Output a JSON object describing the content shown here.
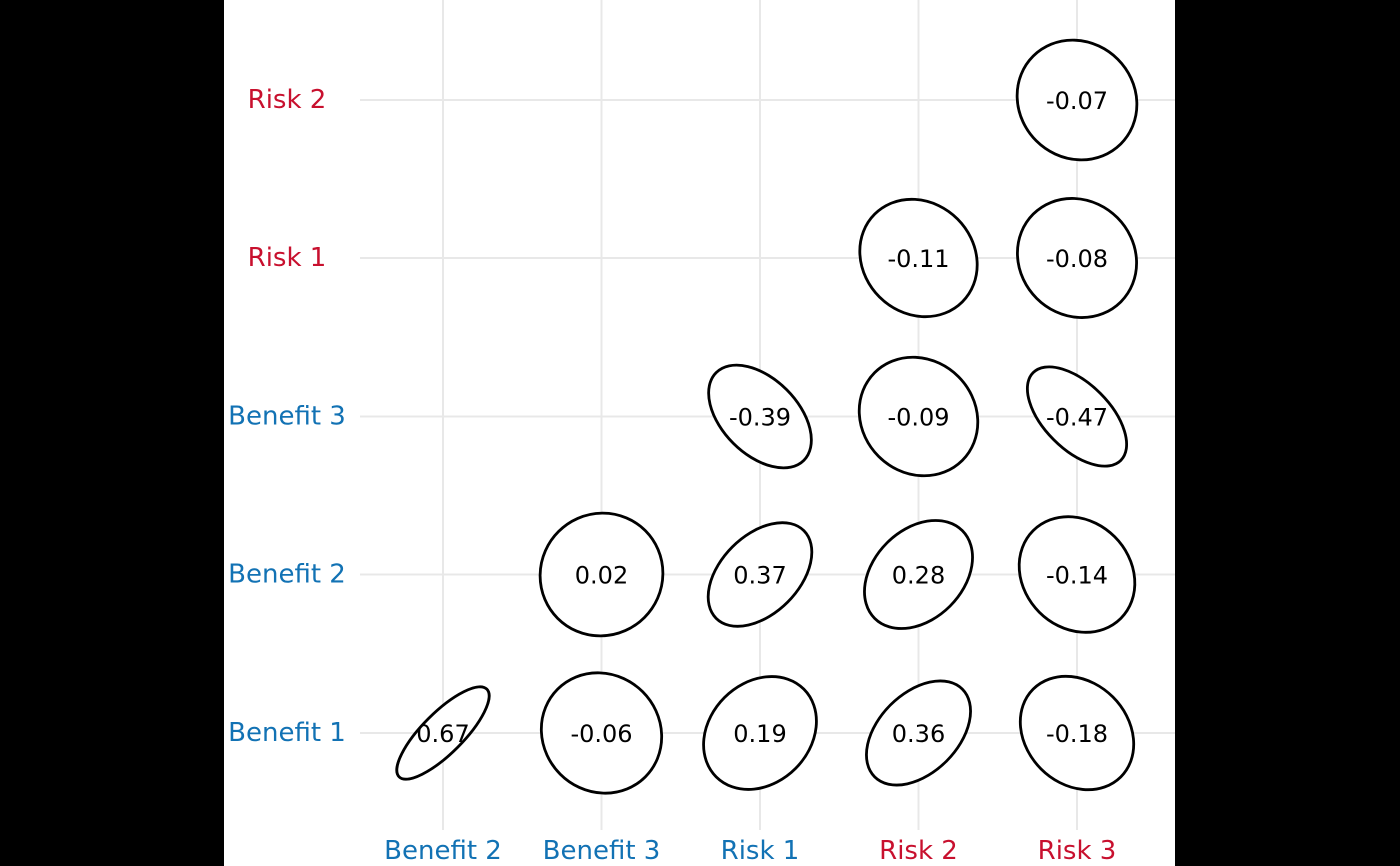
{
  "figure": {
    "outer_background": "#000000",
    "plot_background": "#ffffff"
  },
  "chart_data": {
    "type": "heatmap",
    "subtype": "correlation-ellipse-matrix",
    "title": "",
    "xlabel": "",
    "ylabel": "",
    "grid": true,
    "legend": false,
    "x_categories": [
      "Benefit 2",
      "Benefit 3",
      "Risk 1",
      "Risk 2",
      "Risk 3"
    ],
    "y_categories_top_to_bottom": [
      "Risk 2",
      "Risk 1",
      "Benefit 3",
      "Benefit 2",
      "Benefit 1"
    ],
    "x_label_colors": [
      "#1272b4",
      "#1272b4",
      "#1272b4",
      "#c8102e",
      "#c8102e"
    ],
    "y_label_colors": [
      "#c8102e",
      "#c8102e",
      "#1272b4",
      "#1272b4",
      "#1272b4"
    ],
    "cells": [
      {
        "row": "Risk 2",
        "col": "Risk 3",
        "value": -0.07,
        "label": "-0.07"
      },
      {
        "row": "Risk 1",
        "col": "Risk 2",
        "value": -0.11,
        "label": "-0.11"
      },
      {
        "row": "Risk 1",
        "col": "Risk 3",
        "value": -0.08,
        "label": "-0.08"
      },
      {
        "row": "Benefit 3",
        "col": "Risk 1",
        "value": -0.39,
        "label": "-0.39"
      },
      {
        "row": "Benefit 3",
        "col": "Risk 2",
        "value": -0.09,
        "label": "-0.09"
      },
      {
        "row": "Benefit 3",
        "col": "Risk 3",
        "value": -0.47,
        "label": "-0.47"
      },
      {
        "row": "Benefit 2",
        "col": "Benefit 3",
        "value": 0.02,
        "label": "0.02"
      },
      {
        "row": "Benefit 2",
        "col": "Risk 1",
        "value": 0.37,
        "label": "0.37"
      },
      {
        "row": "Benefit 2",
        "col": "Risk 2",
        "value": 0.28,
        "label": "0.28"
      },
      {
        "row": "Benefit 2",
        "col": "Risk 3",
        "value": -0.14,
        "label": "-0.14"
      },
      {
        "row": "Benefit 1",
        "col": "Benefit 2",
        "value": 0.67,
        "label": "0.67"
      },
      {
        "row": "Benefit 1",
        "col": "Benefit 3",
        "value": -0.06,
        "label": "-0.06"
      },
      {
        "row": "Benefit 1",
        "col": "Risk 1",
        "value": 0.19,
        "label": "0.19"
      },
      {
        "row": "Benefit 1",
        "col": "Risk 2",
        "value": 0.36,
        "label": "0.36"
      },
      {
        "row": "Benefit 1",
        "col": "Risk 3",
        "value": -0.18,
        "label": "-0.18"
      }
    ],
    "style": {
      "ellipse_stroke": "#000000",
      "ellipse_fill": "#ffffff",
      "value_text_color": "#000000",
      "grid_color": "#e8e8e8"
    }
  }
}
